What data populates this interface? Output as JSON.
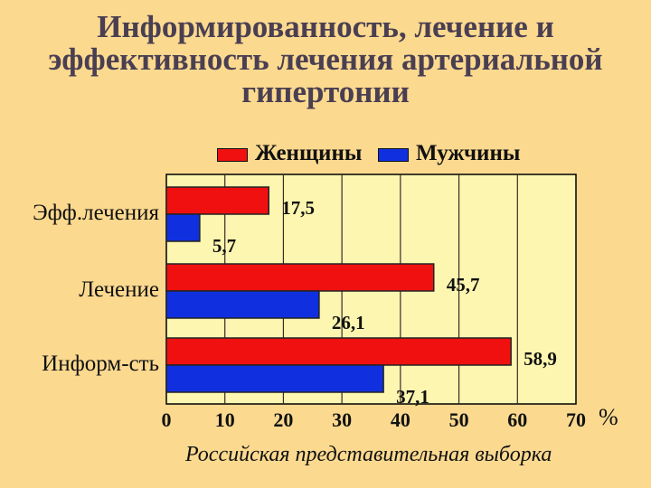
{
  "title_lines": [
    "Информированность, лечение и",
    "эффективность лечения артериальной",
    "гипертонии"
  ],
  "footer": "Российская представительная выборка",
  "unit_label": "%",
  "colors": {
    "women": "#f01010",
    "men": "#1030e0",
    "plot_bg": "#fdf6b0",
    "page_bg": "#fbd98f"
  },
  "chart_data": {
    "type": "bar",
    "orientation": "horizontal",
    "categories": [
      "Эфф.лечения",
      "Лечение",
      "Информ-сть"
    ],
    "series": [
      {
        "name": "Женщины",
        "values": [
          17.5,
          45.7,
          58.9
        ],
        "labels": [
          "17,5",
          "45,7",
          "58,9"
        ]
      },
      {
        "name": "Мужчины",
        "values": [
          5.7,
          26.1,
          37.1
        ],
        "labels": [
          "5,7",
          "26,1",
          "37,1"
        ]
      }
    ],
    "xlim": [
      0,
      70
    ],
    "xticks": [
      "0",
      "10",
      "20",
      "30",
      "40",
      "50",
      "60",
      "70"
    ],
    "grid": true,
    "legend_position": "top"
  }
}
